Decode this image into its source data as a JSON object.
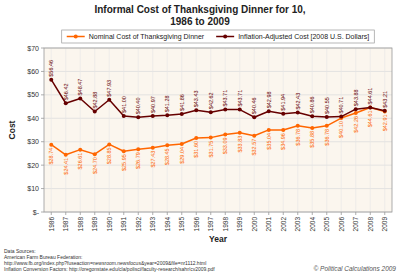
{
  "chart_data": {
    "type": "line",
    "title": "Informal Cost of Thanksgiving Dinner for 10,",
    "subtitle": "1986 to 2009",
    "xlabel": "Year",
    "ylabel": "Cost",
    "x": [
      1986,
      1987,
      1988,
      1989,
      1990,
      1991,
      1992,
      1993,
      1994,
      1995,
      1996,
      1997,
      1998,
      1999,
      2000,
      2001,
      2002,
      2003,
      2004,
      2005,
      2006,
      2007,
      2008,
      2009
    ],
    "series": [
      {
        "name": "Nominal Cost of Thanksgiving Dinner",
        "color": "#FF6600",
        "marker": "circle",
        "line_style": "solid",
        "values": [
          28.74,
          24.41,
          26.61,
          24.7,
          28.85,
          25.95,
          26.79,
          27.43,
          28.45,
          29.04,
          31.6,
          31.75,
          33.09,
          33.83,
          32.57,
          35.04,
          34.96,
          36.78,
          35.88,
          36.78,
          40.1,
          42.26,
          44.61,
          42.91
        ],
        "value_labels": [
          "$28.74",
          "$24.41",
          "$26.61",
          "$24.70",
          "$28.85",
          "$25.95",
          "$26.79",
          "$27.43",
          "$28.45",
          "$29.04",
          "$31.60",
          "$31.75",
          "$33.09",
          "$33.83",
          "$32.57",
          "$35.04",
          "$34.96",
          "$36.78",
          "$35.88",
          "$36.78",
          "$40.10",
          "$42.26",
          "$44.61",
          "$42.91"
        ]
      },
      {
        "name": "Inflation-Adjusted Cost [2008 U.S. Dollars]",
        "color": "#660000",
        "marker": "circle",
        "line_style": "solid",
        "values": [
          56.46,
          46.42,
          48.47,
          42.88,
          47.93,
          41.0,
          40.4,
          40.97,
          41.28,
          41.86,
          43.43,
          42.62,
          43.71,
          43.71,
          40.46,
          42.98,
          41.94,
          42.43,
          40.86,
          40.55,
          40.71,
          43.88,
          44.61,
          43.21
        ],
        "value_labels": [
          "$56.46",
          "$46.42",
          "$48.47",
          "$42.88",
          "$47.93",
          "$41.00",
          "$40.40",
          "$40.97",
          "$41.28",
          "$41.86",
          "$43.43",
          "$42.62",
          "$43.71",
          "$43.71",
          "$40.46",
          "$42.98",
          "$41.94",
          "$42.43",
          "$40.86",
          "$40.55",
          "$40.71",
          "$43.88",
          "$44.61",
          "$43.21"
        ]
      }
    ],
    "xlim": [
      1985.5,
      2009.5
    ],
    "xticks": [
      1986,
      1987,
      1988,
      1989,
      1990,
      1991,
      1992,
      1993,
      1994,
      1995,
      1996,
      1997,
      1998,
      1999,
      2000,
      2001,
      2002,
      2003,
      2004,
      2005,
      2006,
      2007,
      2008,
      2009
    ],
    "ylim": [
      0,
      70
    ],
    "yticks": [
      {
        "value": 0,
        "label": "$-"
      },
      {
        "value": 10,
        "label": "$10"
      },
      {
        "value": 20,
        "label": "$20"
      },
      {
        "value": 30,
        "label": "$30"
      },
      {
        "value": 40,
        "label": "$40"
      },
      {
        "value": 50,
        "label": "$50"
      },
      {
        "value": 60,
        "label": "$60"
      },
      {
        "value": 70,
        "label": "$70"
      }
    ],
    "grid": true,
    "legend": "top",
    "data_labels": true,
    "annotations": [
      "Data Sources:\nAmerican Farm Bureau Federation:\nhttp://www.fb.org/index.php?fuseaction=newsroom.newsfocus&year=2009&file=nr1112.html\nInflation Conversion Factors: http://oregonstate.edu/cla/polisci/faculty-research/sahr/cv2009.pdf",
      "© Political Calculations 2009"
    ]
  }
}
